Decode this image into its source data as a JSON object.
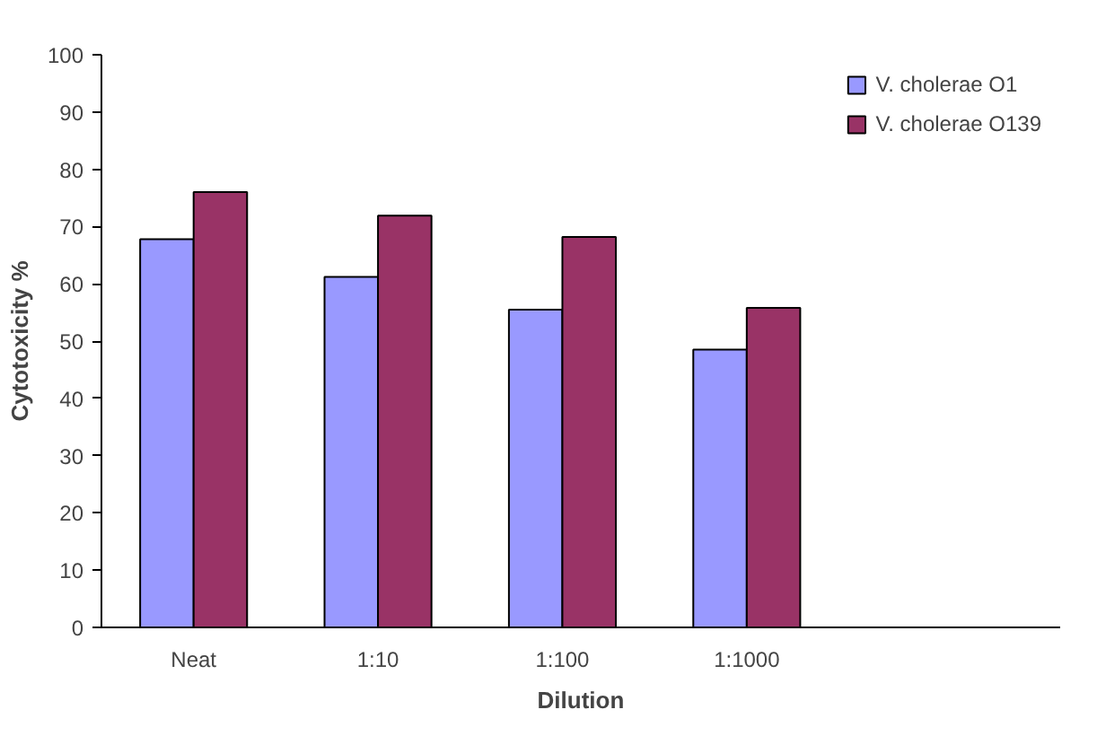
{
  "chart_data": {
    "type": "bar",
    "xlabel": "Dilution",
    "ylabel": "Cytotoxicity %",
    "categories": [
      "Neat",
      "1:10",
      "1:100",
      "1:1000"
    ],
    "series": [
      {
        "name": "V. cholerae O1",
        "color": "#9999ff",
        "values": [
          67.8,
          61.2,
          55.5,
          48.5
        ]
      },
      {
        "name": "V. cholerae O139",
        "color": "#993366",
        "values": [
          76.0,
          71.9,
          68.2,
          55.8
        ]
      }
    ],
    "ylim": [
      0,
      100
    ],
    "yticks": [
      0,
      10,
      20,
      30,
      40,
      50,
      60,
      70,
      80,
      90,
      100
    ],
    "grid": false,
    "legend": "top right"
  }
}
